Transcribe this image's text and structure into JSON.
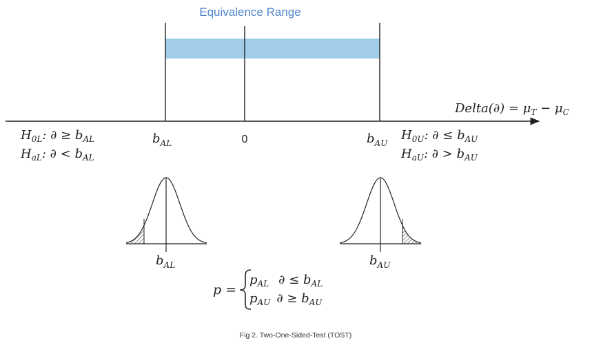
{
  "diagram": {
    "equivalence_range_label": "Equivalence Range",
    "equivalence_color": "#a2cde9",
    "axis_label": {
      "prefix": "Delta(∂) = μ",
      "sub1": "T",
      "minus": " − μ",
      "sub2": "C"
    },
    "ticks": {
      "lower": {
        "base": "b",
        "sub": "AL"
      },
      "zero": "0",
      "upper": {
        "base": "b",
        "sub": "AU"
      }
    },
    "left_hypotheses": [
      {
        "pre": "H",
        "sub": "0L",
        "post": ": ∂ ≥ b",
        "sub2": "AL"
      },
      {
        "pre": "H",
        "sub": "aL",
        "post": ": ∂ < b",
        "sub2": "AL"
      }
    ],
    "right_hypotheses": [
      {
        "pre": "H",
        "sub": "0U",
        "post": ": ∂ ≤ b",
        "sub2": "AU"
      },
      {
        "pre": "H",
        "sub": "aU",
        "post": ": ∂ > b",
        "sub2": "AU"
      }
    ],
    "curve_labels": {
      "left": {
        "base": "b",
        "sub": "AL"
      },
      "right": {
        "base": "b",
        "sub": "AU"
      }
    },
    "p_formula": {
      "lhs": "p =",
      "cases": [
        {
          "p": "p",
          "psub": "AL",
          "cond": "∂ ≤ b",
          "csub": "AL"
        },
        {
          "p": "p",
          "psub": "AU",
          "cond": "∂ ≥ b",
          "csub": "AU"
        }
      ]
    },
    "caption": "Fig 2. Two-One-Sided-Test (TOST)"
  }
}
